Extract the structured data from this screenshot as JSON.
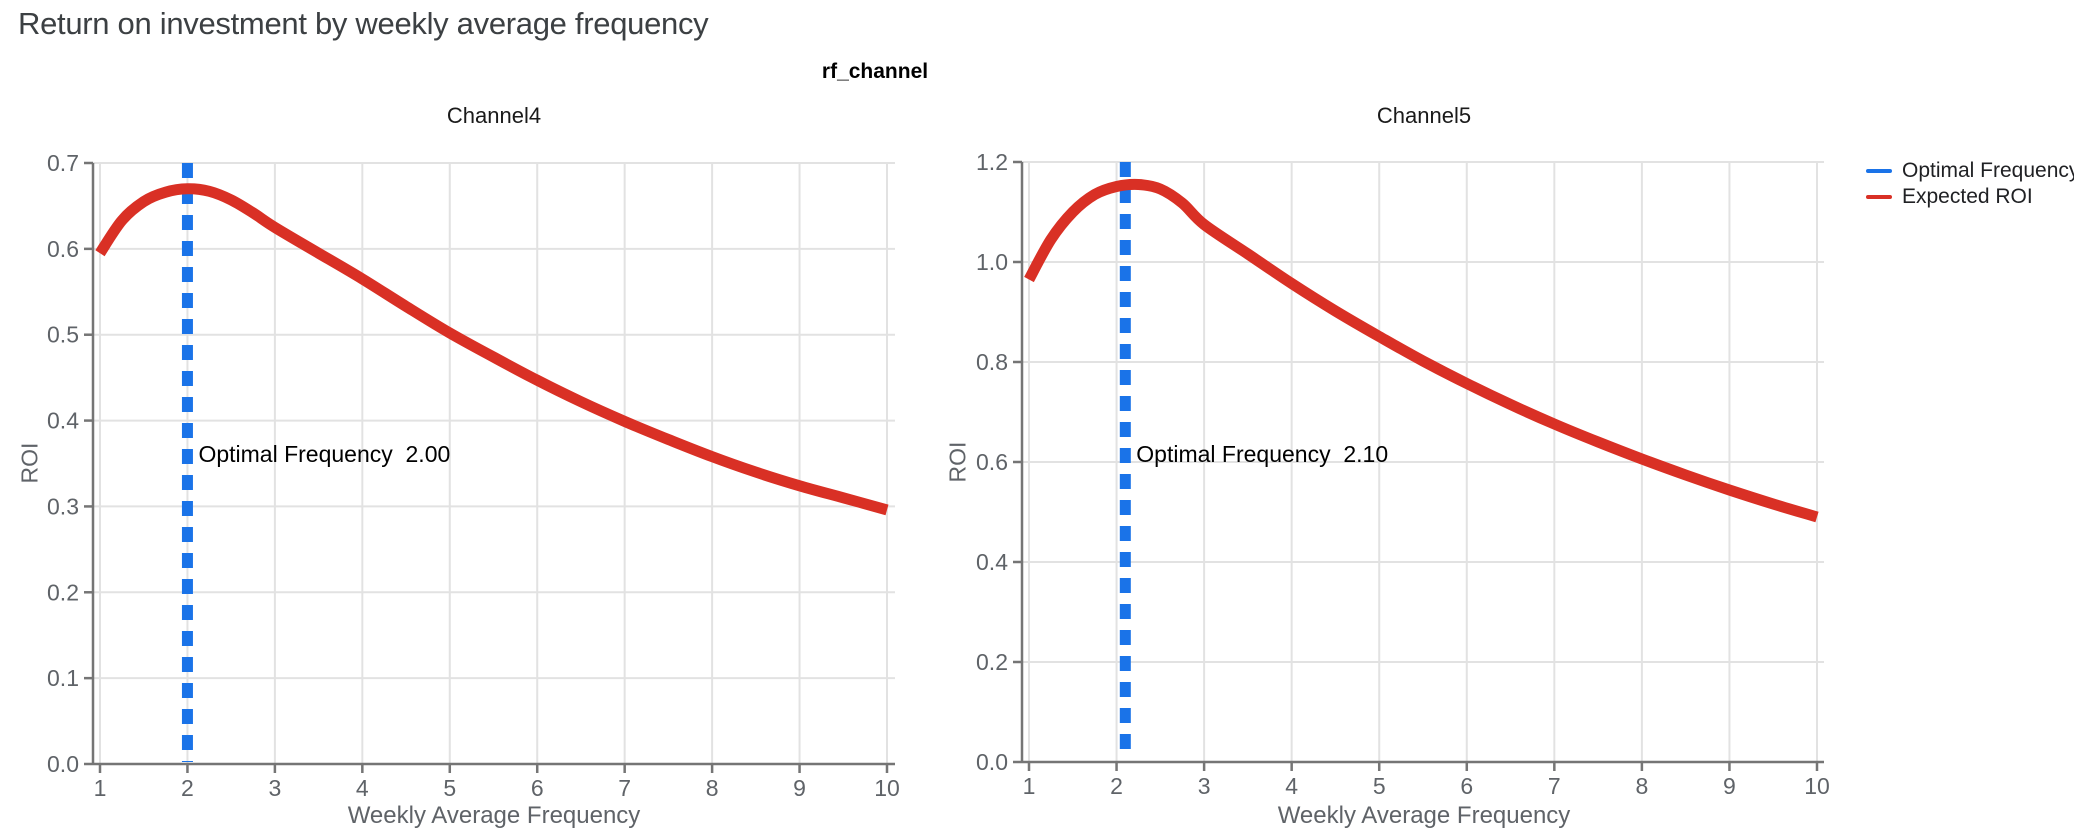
{
  "page": {
    "title": "Return on investment by weekly average frequency"
  },
  "figure": {
    "suptitle": "rf_channel"
  },
  "legend": {
    "items": [
      {
        "name": "optimal-frequency",
        "label": "Optimal Frequency",
        "color": "#1a73e8"
      },
      {
        "name": "expected-roi",
        "label": "Expected ROI",
        "color": "#d93025"
      }
    ]
  },
  "colors": {
    "optimal_line": "#1a73e8",
    "roi_curve": "#d93025",
    "grid": "#e2e2e2",
    "spine": "#757575",
    "tick_text": "#5f6368",
    "title_text": "#3c4043",
    "annotation_text": "#000000"
  },
  "chart_data": [
    {
      "type": "line",
      "title": "Channel4",
      "xlabel": "Weekly Average Frequency",
      "ylabel": "ROI",
      "xlim": [
        1,
        10
      ],
      "ylim": [
        0.0,
        0.7
      ],
      "grid": true,
      "legend_position": "outside-top-right",
      "xticks": [
        1,
        2,
        3,
        4,
        5,
        6,
        7,
        8,
        9,
        10
      ],
      "xtick_labels": [
        "1",
        "2",
        "3",
        "4",
        "5",
        "6",
        "7",
        "8",
        "9",
        "10"
      ],
      "yticks": [
        0.0,
        0.1,
        0.2,
        0.3,
        0.4,
        0.5,
        0.6,
        0.7
      ],
      "ytick_labels": [
        "0.0",
        "0.1",
        "0.2",
        "0.3",
        "0.4",
        "0.5",
        "0.6",
        "0.7"
      ],
      "optimal_frequency": 2.0,
      "annotation": "Optimal Frequency  2.00",
      "series": [
        {
          "name": "Expected ROI",
          "x": [
            1,
            1.25,
            1.5,
            1.75,
            2,
            2.25,
            2.5,
            2.75,
            3,
            3.5,
            4,
            4.5,
            5,
            5.5,
            6,
            6.5,
            7,
            7.5,
            8,
            8.5,
            9,
            9.5,
            10
          ],
          "y": [
            0.595,
            0.633,
            0.655,
            0.666,
            0.67,
            0.667,
            0.657,
            0.642,
            0.625,
            0.595,
            0.565,
            0.533,
            0.502,
            0.474,
            0.447,
            0.422,
            0.399,
            0.378,
            0.358,
            0.34,
            0.324,
            0.31,
            0.296
          ]
        }
      ]
    },
    {
      "type": "line",
      "title": "Channel5",
      "xlabel": "Weekly Average Frequency",
      "ylabel": "ROI",
      "xlim": [
        1,
        10
      ],
      "ylim": [
        0.0,
        1.2
      ],
      "grid": true,
      "legend_position": "outside-top-right",
      "xticks": [
        1,
        2,
        3,
        4,
        5,
        6,
        7,
        8,
        9,
        10
      ],
      "xtick_labels": [
        "1",
        "2",
        "3",
        "4",
        "5",
        "6",
        "7",
        "8",
        "9",
        "10"
      ],
      "yticks": [
        0.0,
        0.2,
        0.4,
        0.6,
        0.8,
        1.0,
        1.2
      ],
      "ytick_labels": [
        "0.0",
        "0.2",
        "0.4",
        "0.6",
        "0.8",
        "1.0",
        "1.2"
      ],
      "optimal_frequency": 2.1,
      "annotation": "Optimal Frequency  2.10",
      "series": [
        {
          "name": "Expected ROI",
          "x": [
            1,
            1.25,
            1.5,
            1.75,
            2,
            2.25,
            2.5,
            2.75,
            3,
            3.5,
            4,
            4.5,
            5,
            5.5,
            6,
            6.5,
            7,
            7.5,
            8,
            8.5,
            9,
            9.5,
            10
          ],
          "y": [
            0.965,
            1.045,
            1.1,
            1.135,
            1.151,
            1.155,
            1.146,
            1.118,
            1.075,
            1.016,
            0.957,
            0.902,
            0.851,
            0.802,
            0.757,
            0.715,
            0.676,
            0.64,
            0.606,
            0.574,
            0.544,
            0.516,
            0.49
          ]
        }
      ]
    }
  ]
}
